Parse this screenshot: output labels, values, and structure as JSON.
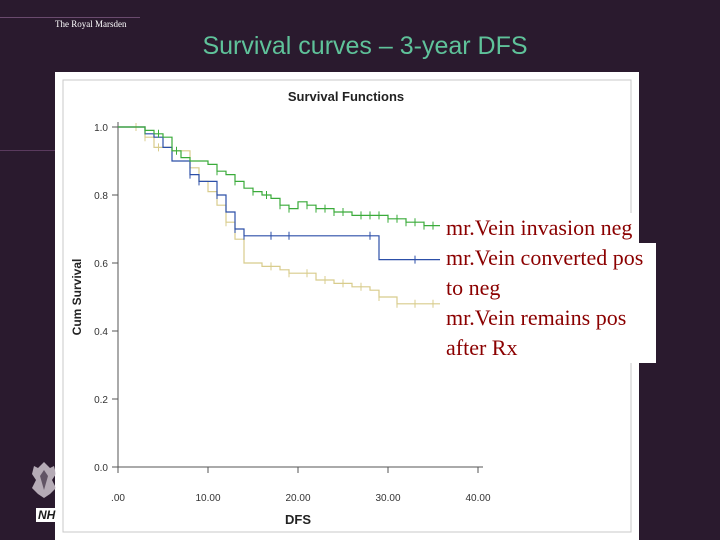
{
  "brand": {
    "name": "The Royal Marsden"
  },
  "slide": {
    "title": "Survival curves – 3-year DFS"
  },
  "nhs": {
    "label": "NH"
  },
  "legend": {
    "items": [
      "mr.Vein invasion neg",
      "mr.Vein converted pos to neg",
      "mr.Vein remains pos after Rx"
    ]
  },
  "chart_data": {
    "type": "line",
    "title": "Survival Functions",
    "xlabel": "DFS",
    "ylabel": "Cum Survival",
    "xlim": [
      0,
      40
    ],
    "ylim": [
      0,
      1
    ],
    "x_ticks": [
      ".00",
      "10.00",
      "20.00",
      "30.00",
      "40.00"
    ],
    "y_ticks": [
      "0.0",
      "0.2",
      "0.4",
      "0.6",
      "0.8",
      "1.0"
    ],
    "colors": {
      "green": "#3aab3a",
      "blue": "#2c4fa8",
      "tan": "#d8cc8c"
    },
    "series": [
      {
        "color": "green",
        "points": [
          [
            0,
            1.0
          ],
          [
            2,
            1.0
          ],
          [
            3,
            0.99
          ],
          [
            4,
            0.98
          ],
          [
            5,
            0.97
          ],
          [
            6,
            0.93
          ],
          [
            7,
            0.91
          ],
          [
            8,
            0.9
          ],
          [
            10,
            0.89
          ],
          [
            11,
            0.87
          ],
          [
            12,
            0.86
          ],
          [
            13,
            0.84
          ],
          [
            14,
            0.82
          ],
          [
            15,
            0.81
          ],
          [
            16,
            0.8
          ],
          [
            17,
            0.79
          ],
          [
            18,
            0.77
          ],
          [
            19,
            0.76
          ],
          [
            20,
            0.78
          ],
          [
            21,
            0.77
          ],
          [
            22,
            0.76
          ],
          [
            24,
            0.75
          ],
          [
            26,
            0.74
          ],
          [
            28,
            0.74
          ],
          [
            30,
            0.73
          ],
          [
            32,
            0.72
          ],
          [
            34,
            0.71
          ],
          [
            36,
            0.7
          ],
          [
            38,
            0.69
          ],
          [
            39.5,
            0.68
          ]
        ],
        "censors": [
          3,
          4.5,
          6.5,
          11,
          13,
          15,
          16.5,
          18,
          19,
          21,
          22,
          23,
          24,
          25,
          27,
          28,
          29,
          30,
          31,
          32,
          33,
          34,
          35,
          36
        ]
      },
      {
        "color": "blue",
        "points": [
          [
            0,
            1.0
          ],
          [
            3,
            0.98
          ],
          [
            4,
            0.97
          ],
          [
            5,
            0.94
          ],
          [
            6,
            0.9
          ],
          [
            7,
            0.9
          ],
          [
            8,
            0.86
          ],
          [
            9,
            0.84
          ],
          [
            10,
            0.84
          ],
          [
            11,
            0.8
          ],
          [
            12,
            0.75
          ],
          [
            13,
            0.7
          ],
          [
            14,
            0.68
          ],
          [
            28,
            0.68
          ],
          [
            29,
            0.61
          ],
          [
            39.5,
            0.61
          ]
        ],
        "censors": [
          8,
          9,
          11,
          13,
          14,
          17,
          19,
          28,
          33
        ]
      },
      {
        "color": "tan",
        "points": [
          [
            0,
            1.0
          ],
          [
            3,
            0.97
          ],
          [
            4,
            0.94
          ],
          [
            6,
            0.93
          ],
          [
            8,
            0.88
          ],
          [
            9,
            0.84
          ],
          [
            10,
            0.81
          ],
          [
            11,
            0.77
          ],
          [
            12,
            0.72
          ],
          [
            13,
            0.67
          ],
          [
            14,
            0.6
          ],
          [
            16,
            0.59
          ],
          [
            18,
            0.58
          ],
          [
            19,
            0.57
          ],
          [
            20,
            0.57
          ],
          [
            22,
            0.55
          ],
          [
            24,
            0.54
          ],
          [
            26,
            0.53
          ],
          [
            28,
            0.52
          ],
          [
            29,
            0.5
          ],
          [
            31,
            0.48
          ],
          [
            33,
            0.48
          ],
          [
            39.5,
            0.48
          ]
        ],
        "censors": [
          2,
          3,
          4.5,
          9,
          12,
          17,
          19,
          21,
          23,
          25,
          27,
          29,
          31,
          33,
          35,
          37
        ]
      }
    ]
  }
}
